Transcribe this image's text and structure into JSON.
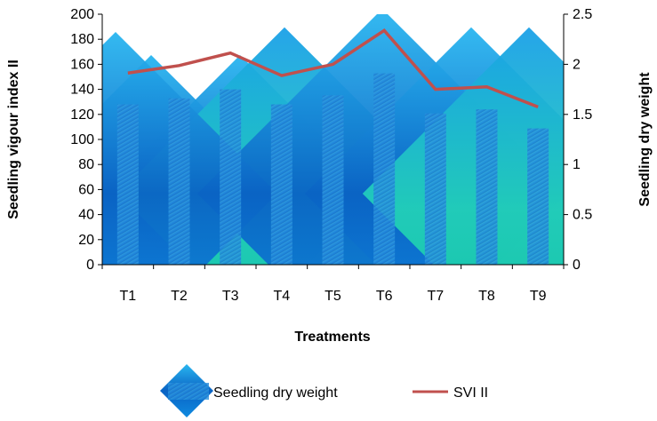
{
  "chart_data": {
    "type": "bar",
    "categories": [
      "T1",
      "T2",
      "T3",
      "T4",
      "T5",
      "T6",
      "T7",
      "T8",
      "T9"
    ],
    "series": [
      {
        "name": "Seedling dry weight",
        "axis": "right",
        "kind": "bar",
        "values": [
          1.6,
          1.66,
          1.75,
          1.6,
          1.69,
          1.91,
          1.51,
          1.55,
          1.36
        ]
      },
      {
        "name": "SVI II",
        "axis": "left",
        "kind": "line",
        "values": [
          153,
          159,
          169,
          151,
          160,
          187,
          140,
          142,
          126
        ]
      }
    ],
    "xlabel": "Treatments",
    "ylabel_left": "Seedling vigour index II",
    "ylabel_right": "Seedling dry weight",
    "ylim_left": [
      0,
      200
    ],
    "ylim_right": [
      0,
      2.5
    ],
    "yticks_left": [
      "0",
      "20",
      "40",
      "60",
      "80",
      "100",
      "120",
      "140",
      "160",
      "180",
      "200"
    ],
    "yticks_right": [
      "0",
      "0.5",
      "1",
      "1.5",
      "2",
      "2.5"
    ],
    "grid": false,
    "legend_position": "bottom",
    "colors": {
      "bar_light": "#3FA9E8",
      "bar_dark": "#0A4FA0",
      "bar_teal": "#27D6B0",
      "line": "#C0504D"
    }
  }
}
